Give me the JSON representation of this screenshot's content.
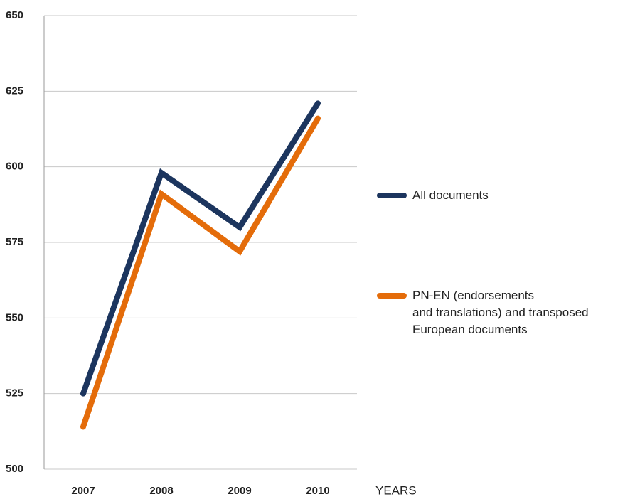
{
  "chart_data": {
    "type": "line",
    "x_label": "YEARS",
    "categories": [
      "2007",
      "2008",
      "2009",
      "2010"
    ],
    "series": [
      {
        "name": "All documents",
        "color": "#1c355e",
        "values": [
          525,
          598,
          580,
          621
        ]
      },
      {
        "name": "PN-EN (endorsements\nand translations) and transposed\nEuropean documents",
        "color": "#e46c0a",
        "values": [
          514,
          591,
          572,
          616
        ]
      }
    ],
    "ylim": [
      500,
      650
    ],
    "yticks": [
      500,
      525,
      550,
      575,
      600,
      625,
      650
    ],
    "grid": true,
    "legend": "right"
  }
}
